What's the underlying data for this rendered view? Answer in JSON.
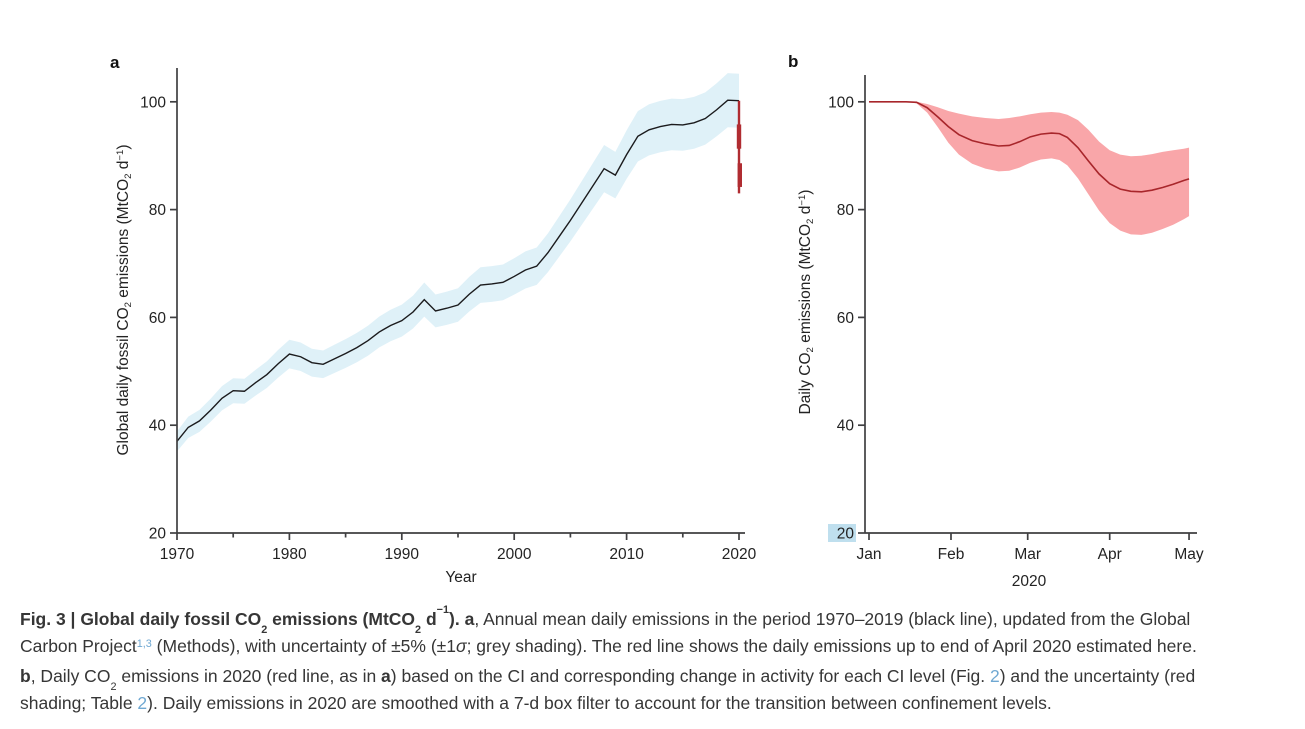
{
  "figure": {
    "panel_a": {
      "label": "a"
    },
    "panel_b": {
      "label": "b"
    }
  },
  "axis_labels": {
    "panel_a_y": [
      {
        "t": "Global daily fossil CO"
      },
      {
        "t": "2",
        "s": "sub"
      },
      {
        "t": " emissions (MtCO"
      },
      {
        "t": "2",
        "s": "sub"
      },
      {
        "t": " d"
      },
      {
        "t": "−1",
        "s": "sup"
      },
      {
        "t": ")"
      }
    ],
    "panel_b_y": [
      {
        "t": "Daily CO"
      },
      {
        "t": "2",
        "s": "sub"
      },
      {
        "t": " emissions (MtCO"
      },
      {
        "t": "2",
        "s": "sub"
      },
      {
        "t": " d"
      },
      {
        "t": "−1",
        "s": "sup"
      },
      {
        "t": ")"
      }
    ]
  },
  "chart_data": [
    {
      "panel": "a",
      "type": "line",
      "xlabel": "Year",
      "ylabel": "Global daily fossil CO2 emissions (MtCO2 d-1)",
      "xlim": [
        1970,
        2021
      ],
      "ylim": [
        20,
        106
      ],
      "x_ticks": [
        1970,
        1980,
        1990,
        2000,
        2010,
        2020
      ],
      "x_minor_ticks": [
        1975,
        1985,
        1995,
        2005,
        2015
      ],
      "y_ticks": [
        20,
        40,
        60,
        80,
        100
      ],
      "x_start": 1970,
      "x_step": 1,
      "series_name": "Annual mean daily emissions 1970-2019 (black line)",
      "band_name": "±5% (±1σ) uncertainty shading",
      "values": [
        37.0,
        39.6,
        40.8,
        42.8,
        45.0,
        46.4,
        46.3,
        47.9,
        49.4,
        51.4,
        53.2,
        52.7,
        51.6,
        51.3,
        52.3,
        53.3,
        54.4,
        55.7,
        57.3,
        58.5,
        59.4,
        61.0,
        63.3,
        61.2,
        61.7,
        62.3,
        64.3,
        66.0,
        66.2,
        66.5,
        67.6,
        68.8,
        69.5,
        72.0,
        75.0,
        78.0,
        81.2,
        84.4,
        87.6,
        86.4,
        90.2,
        93.6,
        94.8,
        95.4,
        95.8,
        95.7,
        96.1,
        96.9,
        98.5,
        100.3
      ],
      "flat_extension_2020": 100.2,
      "uncertainty_pct": 5,
      "line_color": "#1b1b1d",
      "band_color": "#dff1f8",
      "red_drop_2020": {
        "x": 2020,
        "from": 100.2,
        "to": 83.0,
        "color": "#b02c31",
        "thick_segments": [
          [
            95.8,
            91.3
          ],
          [
            88.6,
            84.2
          ]
        ]
      }
    },
    {
      "panel": "b",
      "type": "line",
      "xlabel": "2020",
      "ylabel": "Daily CO2 emissions (MtCO2 d-1)",
      "ylim": [
        20,
        106
      ],
      "x_tick_labels": [
        "Jan",
        "Feb",
        "Mar",
        "Apr",
        "May"
      ],
      "x_tick_days": [
        1,
        32,
        61,
        92,
        122
      ],
      "y_ticks": [
        20,
        40,
        60,
        80,
        100
      ],
      "y_tick_highlight": {
        "value": 20,
        "color": "#bfdfee"
      },
      "series_name": "Daily CO2 emissions in 2020 (red line)",
      "band_name": "Uncertainty (red shading)",
      "days": [
        1,
        5,
        10,
        15,
        19,
        23,
        27,
        31,
        35,
        40,
        45,
        50,
        54,
        58,
        62,
        66,
        70,
        73,
        76,
        80,
        84,
        88,
        92,
        96,
        100,
        104,
        108,
        112,
        116,
        120,
        122
      ],
      "values": [
        100,
        100,
        100,
        100,
        99.9,
        98.9,
        97.2,
        95.4,
        93.9,
        92.8,
        92.2,
        91.8,
        91.9,
        92.6,
        93.5,
        94.0,
        94.2,
        94.1,
        93.4,
        91.5,
        89.0,
        86.6,
        84.8,
        83.8,
        83.4,
        83.3,
        83.6,
        84.1,
        84.7,
        85.4,
        85.7
      ],
      "band_upper": [
        100,
        100,
        100,
        100,
        100,
        99.6,
        99.0,
        98.3,
        97.8,
        97.3,
        97.0,
        96.8,
        97.0,
        97.3,
        97.7,
        98.0,
        98.1,
        98.0,
        97.6,
        96.6,
        94.8,
        92.6,
        91.0,
        90.2,
        89.9,
        90.0,
        90.3,
        90.7,
        91.0,
        91.3,
        91.5
      ],
      "band_lower": [
        100,
        100,
        100,
        100,
        99.7,
        98.0,
        95.3,
        92.4,
        90.2,
        88.5,
        87.6,
        87.1,
        87.2,
        87.8,
        88.7,
        89.3,
        89.5,
        89.2,
        88.2,
        85.8,
        82.8,
        79.8,
        77.5,
        76.1,
        75.4,
        75.3,
        75.7,
        76.4,
        77.2,
        78.2,
        78.8
      ],
      "line_color": "#a8262b",
      "band_color": "#f9a6a9"
    }
  ],
  "caption": {
    "link_color": "#6fa8d2",
    "lines": [
      [
        {
          "t": "Fig. 3 | Global daily fossil CO",
          "s": "b"
        },
        {
          "t": "2",
          "s": "bsub"
        },
        {
          "t": " emissions (MtCO",
          "s": "b"
        },
        {
          "t": "2",
          "s": "bsub"
        },
        {
          "t": " d",
          "s": "b"
        },
        {
          "t": "−1",
          "s": "bsup"
        },
        {
          "t": "). ",
          "s": "b"
        },
        {
          "t": "a",
          "s": "b"
        },
        {
          "t": ", Annual mean daily emissions in the period 1970–2019 (black line), updated from the Global"
        }
      ],
      [
        {
          "t": "Carbon Project"
        },
        {
          "t": "1,3",
          "s": "linksup"
        },
        {
          "t": " (Methods), with uncertainty of ±5% (±1"
        },
        {
          "t": "σ",
          "s": "i"
        },
        {
          "t": "; grey shading). The red line shows the daily emissions up to end of April 2020 estimated here."
        }
      ],
      [
        {
          "t": "b",
          "s": "b"
        },
        {
          "t": ", Daily CO"
        },
        {
          "t": "2",
          "s": "sub"
        },
        {
          "t": " emissions in 2020 (red line, as in "
        },
        {
          "t": "a",
          "s": "b"
        },
        {
          "t": ") based on the CI and corresponding change in activity for each CI level (Fig. "
        },
        {
          "t": "2",
          "s": "link"
        },
        {
          "t": ") and the uncertainty (red"
        }
      ],
      [
        {
          "t": "shading; Table "
        },
        {
          "t": "2",
          "s": "link"
        },
        {
          "t": "). Daily emissions in 2020 are smoothed with a 7-d box filter to account for the transition between confinement levels."
        }
      ]
    ]
  }
}
